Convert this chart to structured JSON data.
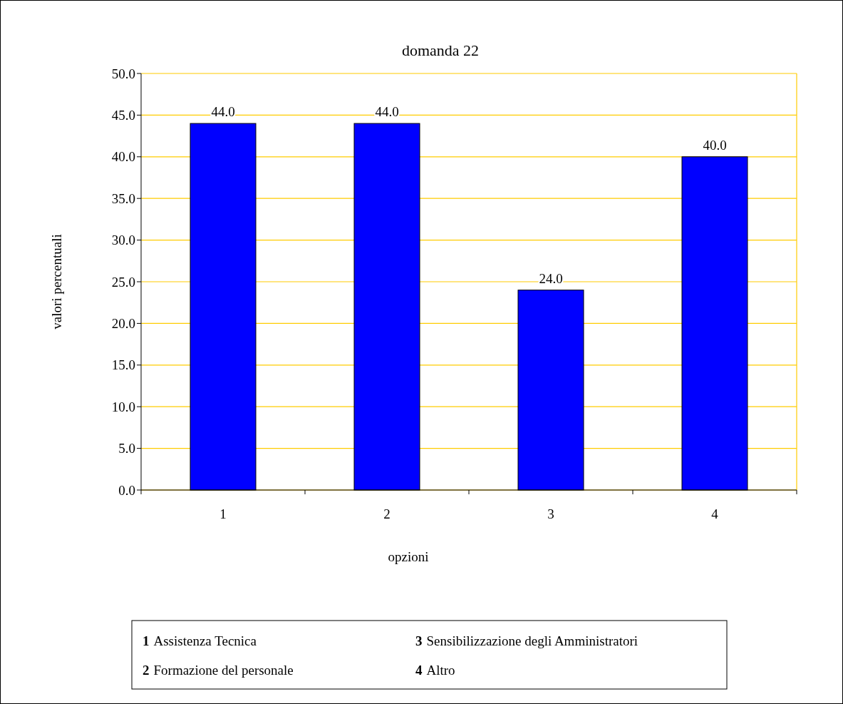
{
  "chart_data": {
    "type": "bar",
    "title": "domanda 22",
    "xlabel": "opzioni",
    "ylabel": "valori percentuali",
    "categories": [
      "1",
      "2",
      "3",
      "4"
    ],
    "values": [
      44,
      44,
      24,
      40
    ],
    "value_labels": [
      "44.0",
      "44.0",
      "24.0",
      "40.0"
    ],
    "color": "#0000ff",
    "ylim": [
      0,
      50
    ],
    "yticks": [
      {
        "value": 0,
        "label": "0.0"
      },
      {
        "value": 5,
        "label": "5.0"
      },
      {
        "value": 10,
        "label": "10.0"
      },
      {
        "value": 15,
        "label": "15.0"
      },
      {
        "value": 20,
        "label": "20.0"
      },
      {
        "value": 25,
        "label": "25.0"
      },
      {
        "value": 30,
        "label": "30.0"
      },
      {
        "value": 35,
        "label": "35.0"
      },
      {
        "value": 40,
        "label": "40.0"
      },
      {
        "value": 45,
        "label": "45.0"
      },
      {
        "value": 50,
        "label": "50.0"
      }
    ],
    "grid": "y",
    "annotations": [
      "1 Assistenza Tecnica",
      "2 Formazione del personale",
      "3 Sensibilizzazione degli Amministratori",
      "4 Altro"
    ]
  }
}
